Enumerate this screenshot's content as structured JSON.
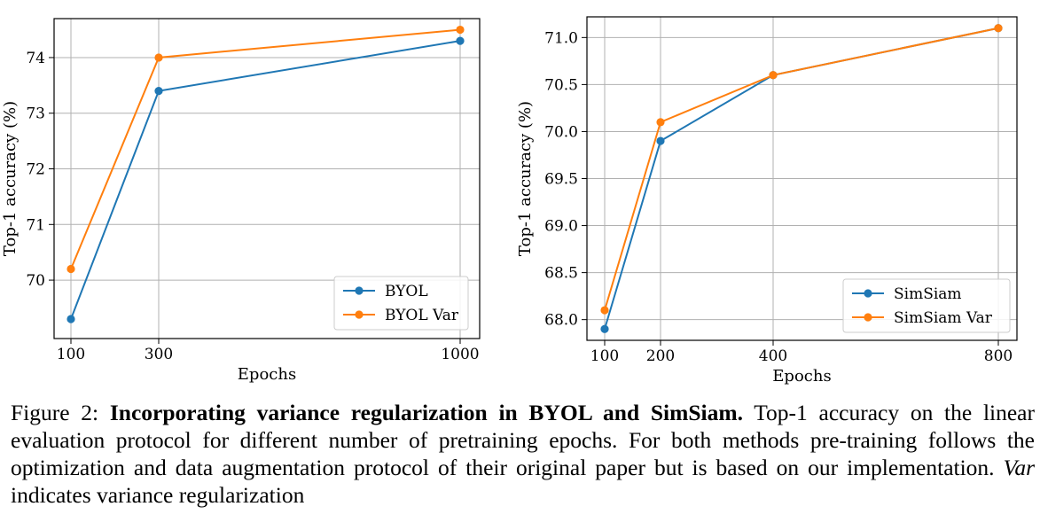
{
  "colors": {
    "series_1": "#1f77b4",
    "series_2": "#ff7f0e",
    "grid": "#b0b0b0"
  },
  "chart_data": [
    {
      "type": "line",
      "title": "",
      "xlabel": "Epochs",
      "ylabel": "Top-1 accuracy (%)",
      "x": [
        100,
        300,
        1000
      ],
      "xticks": [
        "100",
        "300",
        "1000"
      ],
      "yticks": [
        70,
        71,
        72,
        73,
        74
      ],
      "ytick_labels": [
        "70",
        "71",
        "72",
        "73",
        "74"
      ],
      "ylim": [
        68.95,
        74.7
      ],
      "grid": true,
      "legend_position": "bottom-right",
      "series": [
        {
          "name": "BYOL",
          "values": [
            69.3,
            73.4,
            74.3
          ]
        },
        {
          "name": "BYOL Var",
          "values": [
            70.2,
            74.0,
            74.5
          ]
        }
      ]
    },
    {
      "type": "line",
      "title": "",
      "xlabel": "Epochs",
      "ylabel": "Top-1 accuracy (%)",
      "x": [
        100,
        200,
        400,
        800
      ],
      "xticks": [
        "100",
        "200",
        "400",
        "800"
      ],
      "yticks": [
        68.0,
        68.5,
        69.0,
        69.5,
        70.0,
        70.5,
        71.0
      ],
      "ytick_labels": [
        "68.0",
        "68.5",
        "69.0",
        "69.5",
        "70.0",
        "70.5",
        "71.0"
      ],
      "ylim": [
        67.78,
        71.22
      ],
      "grid": true,
      "legend_position": "bottom-right",
      "series": [
        {
          "name": "SimSiam",
          "values": [
            67.9,
            69.9,
            70.6,
            71.1
          ]
        },
        {
          "name": "SimSiam Var",
          "values": [
            68.1,
            70.1,
            70.6,
            71.1
          ]
        }
      ]
    }
  ],
  "caption": {
    "figure_label": "Figure 2:",
    "bold_title": "Incorporating variance regularization in BYOL and SimSiam.",
    "text": "Top-1 accuracy on the linear evaluation protocol for different number of pretraining epochs. For both methods pre-training follows the optimization and data augmentation protocol of their original paper but is based on our implementation.",
    "italic_term": "Var",
    "tail": "indicates variance regularization"
  }
}
